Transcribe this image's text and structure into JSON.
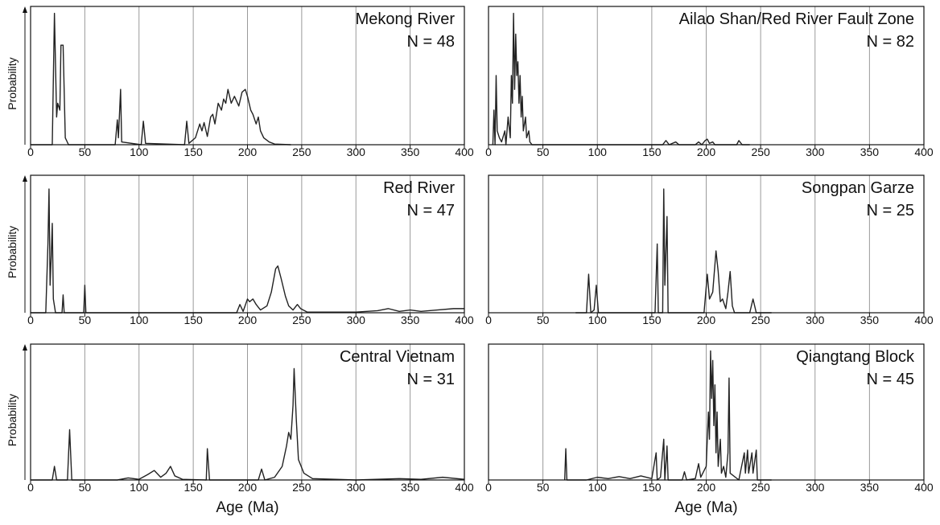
{
  "chart_data": [
    {
      "type": "line",
      "title": "Mekong River",
      "subtitle": "N = 48",
      "ylabel": "Probability",
      "color": "#222222",
      "grid": true,
      "xlim": [
        0,
        400
      ],
      "ylim": [
        0,
        1
      ],
      "xticks": [
        0,
        50,
        100,
        150,
        200,
        250,
        300,
        350,
        400
      ],
      "x": [
        0,
        20,
        22,
        24,
        25,
        27,
        28,
        30,
        32,
        35,
        78,
        80,
        81,
        83,
        84,
        102,
        104,
        106,
        142,
        144,
        146,
        152,
        156,
        158,
        160,
        163,
        166,
        168,
        170,
        173,
        176,
        178,
        180,
        182,
        185,
        188,
        192,
        195,
        198,
        200,
        203,
        205,
        208,
        210,
        212,
        215,
        220,
        225,
        240
      ],
      "values": [
        0,
        0,
        0.95,
        0.2,
        0.3,
        0.25,
        0.72,
        0.72,
        0.05,
        0,
        0,
        0.18,
        0.05,
        0.4,
        0.02,
        0,
        0.17,
        0.01,
        0,
        0.17,
        0.01,
        0.05,
        0.15,
        0.1,
        0.16,
        0.06,
        0.2,
        0.22,
        0.15,
        0.3,
        0.25,
        0.33,
        0.3,
        0.4,
        0.3,
        0.35,
        0.28,
        0.38,
        0.4,
        0.35,
        0.25,
        0.22,
        0.15,
        0.2,
        0.1,
        0.05,
        0.02,
        0.005,
        0
      ]
    },
    {
      "type": "line",
      "title": "Ailao Shan/Red River Fault Zone",
      "subtitle": "N = 82",
      "color": "#222222",
      "grid": true,
      "xlim": [
        0,
        400
      ],
      "ylim": [
        0,
        1
      ],
      "xticks": [
        0,
        50,
        100,
        150,
        200,
        250,
        300,
        350,
        400
      ],
      "x": [
        4,
        5,
        6,
        7,
        8,
        10,
        12,
        15,
        16,
        18,
        20,
        21,
        22,
        23,
        24,
        25,
        26,
        27,
        28,
        29,
        30,
        31,
        32,
        34,
        35,
        37,
        38,
        40,
        160,
        163,
        166,
        172,
        175,
        190,
        193,
        196,
        199,
        201,
        203,
        206,
        208,
        228,
        230,
        233,
        240
      ],
      "values": [
        0,
        0.25,
        0,
        0.5,
        0.1,
        0.05,
        0.02,
        0.1,
        0,
        0.2,
        0.05,
        0.5,
        0.3,
        0.95,
        0.4,
        0.8,
        0.5,
        0.6,
        0.3,
        0.5,
        0.2,
        0.35,
        0.1,
        0.2,
        0.05,
        0.1,
        0.02,
        0,
        0,
        0.03,
        0,
        0.02,
        0,
        0,
        0.02,
        0,
        0.03,
        0.04,
        0.01,
        0.02,
        0,
        0,
        0.03,
        0,
        0
      ]
    },
    {
      "type": "line",
      "title": "Red River",
      "subtitle": "N = 47",
      "ylabel": "Probability",
      "color": "#222222",
      "grid": true,
      "xlim": [
        0,
        400
      ],
      "ylim": [
        0,
        1
      ],
      "xticks": [
        0,
        50,
        100,
        150,
        200,
        250,
        300,
        350,
        400
      ],
      "x": [
        0,
        14,
        16,
        17,
        18,
        19,
        20,
        21,
        23,
        29,
        30,
        31,
        49,
        50,
        51,
        190,
        193,
        196,
        200,
        202,
        205,
        208,
        212,
        218,
        222,
        226,
        228,
        231,
        235,
        238,
        242,
        246,
        249,
        255,
        300,
        320,
        330,
        340,
        350,
        360,
        375,
        390,
        400
      ],
      "values": [
        0,
        0,
        0.5,
        0.9,
        0.2,
        0.4,
        0.65,
        0.1,
        0,
        0,
        0.13,
        0,
        0,
        0.2,
        0,
        0,
        0.06,
        0.01,
        0.1,
        0.08,
        0.1,
        0.06,
        0.02,
        0.05,
        0.15,
        0.32,
        0.34,
        0.25,
        0.12,
        0.05,
        0.02,
        0.06,
        0.03,
        0.005,
        0.005,
        0.015,
        0.03,
        0.01,
        0.02,
        0.01,
        0.02,
        0.03,
        0.03
      ]
    },
    {
      "type": "line",
      "title": "Songpan Garze",
      "subtitle": "N = 25",
      "color": "#222222",
      "grid": true,
      "xlim": [
        0,
        400
      ],
      "ylim": [
        0,
        1
      ],
      "xticks": [
        0,
        50,
        100,
        150,
        200,
        250,
        300,
        350,
        400
      ],
      "x": [
        80,
        90,
        92,
        94,
        97,
        99,
        101,
        153,
        155,
        156,
        160,
        161,
        162,
        164,
        165,
        198,
        201,
        203,
        206,
        209,
        211,
        213,
        215,
        218,
        220,
        222,
        224,
        226,
        240,
        243,
        246,
        260
      ],
      "values": [
        0,
        0,
        0.28,
        0,
        0.02,
        0.2,
        0,
        0,
        0.5,
        0,
        0,
        0.9,
        0.2,
        0.7,
        0,
        0,
        0.28,
        0.1,
        0.15,
        0.45,
        0.3,
        0.08,
        0.1,
        0.03,
        0.15,
        0.3,
        0.05,
        0,
        0,
        0.1,
        0,
        0
      ]
    },
    {
      "type": "line",
      "title": "Central Vietnam",
      "subtitle": "N = 31",
      "ylabel": "Probability",
      "xlabel": "Age (Ma)",
      "color": "#222222",
      "grid": true,
      "xlim": [
        0,
        400
      ],
      "ylim": [
        0,
        1
      ],
      "xticks": [
        0,
        50,
        100,
        150,
        200,
        250,
        300,
        350,
        400
      ],
      "x": [
        0,
        20,
        22,
        24,
        34,
        36,
        38,
        80,
        90,
        100,
        108,
        114,
        120,
        125,
        129,
        133,
        140,
        162,
        163,
        165,
        210,
        213,
        216,
        225,
        232,
        236,
        238,
        240,
        242,
        243,
        245,
        247,
        252,
        260,
        300,
        340,
        360,
        380,
        400
      ],
      "values": [
        0,
        0,
        0.1,
        0,
        0,
        0.37,
        0,
        0,
        0.015,
        0.005,
        0.04,
        0.07,
        0.02,
        0.05,
        0.1,
        0.03,
        0.005,
        0,
        0.23,
        0,
        0,
        0.08,
        0,
        0.02,
        0.1,
        0.25,
        0.35,
        0.3,
        0.55,
        0.82,
        0.45,
        0.15,
        0.05,
        0.01,
        0,
        0.01,
        0.005,
        0.02,
        0.005
      ]
    },
    {
      "type": "line",
      "title": "Qiangtang Block",
      "subtitle": "N = 45",
      "xlabel": "Age (Ma)",
      "color": "#222222",
      "grid": true,
      "xlim": [
        0,
        400
      ],
      "ylim": [
        0,
        1
      ],
      "xticks": [
        0,
        50,
        100,
        150,
        200,
        250,
        300,
        350,
        400
      ],
      "x": [
        70,
        71,
        72,
        90,
        100,
        110,
        120,
        130,
        140,
        150,
        154,
        155,
        158,
        161,
        162,
        164,
        165,
        178,
        180,
        182,
        190,
        193,
        195,
        200,
        202,
        203,
        204,
        205,
        206,
        207,
        208,
        209,
        210,
        211,
        213,
        214,
        216,
        218,
        220,
        221,
        222,
        230,
        235,
        236,
        238,
        239,
        242,
        243,
        246,
        247,
        260
      ],
      "values": [
        0,
        0.23,
        0,
        0,
        0.02,
        0.01,
        0.025,
        0.01,
        0.03,
        0.01,
        0.2,
        0,
        0.02,
        0.3,
        0,
        0.25,
        0,
        0,
        0.06,
        0,
        0.01,
        0.12,
        0.02,
        0.1,
        0.5,
        0.3,
        0.95,
        0.6,
        0.88,
        0.4,
        0.7,
        0.2,
        0.5,
        0.1,
        0.3,
        0.05,
        0.1,
        0.02,
        0.2,
        0.75,
        0.05,
        0,
        0.2,
        0.05,
        0.22,
        0.05,
        0.2,
        0.05,
        0.22,
        0,
        0
      ]
    }
  ]
}
